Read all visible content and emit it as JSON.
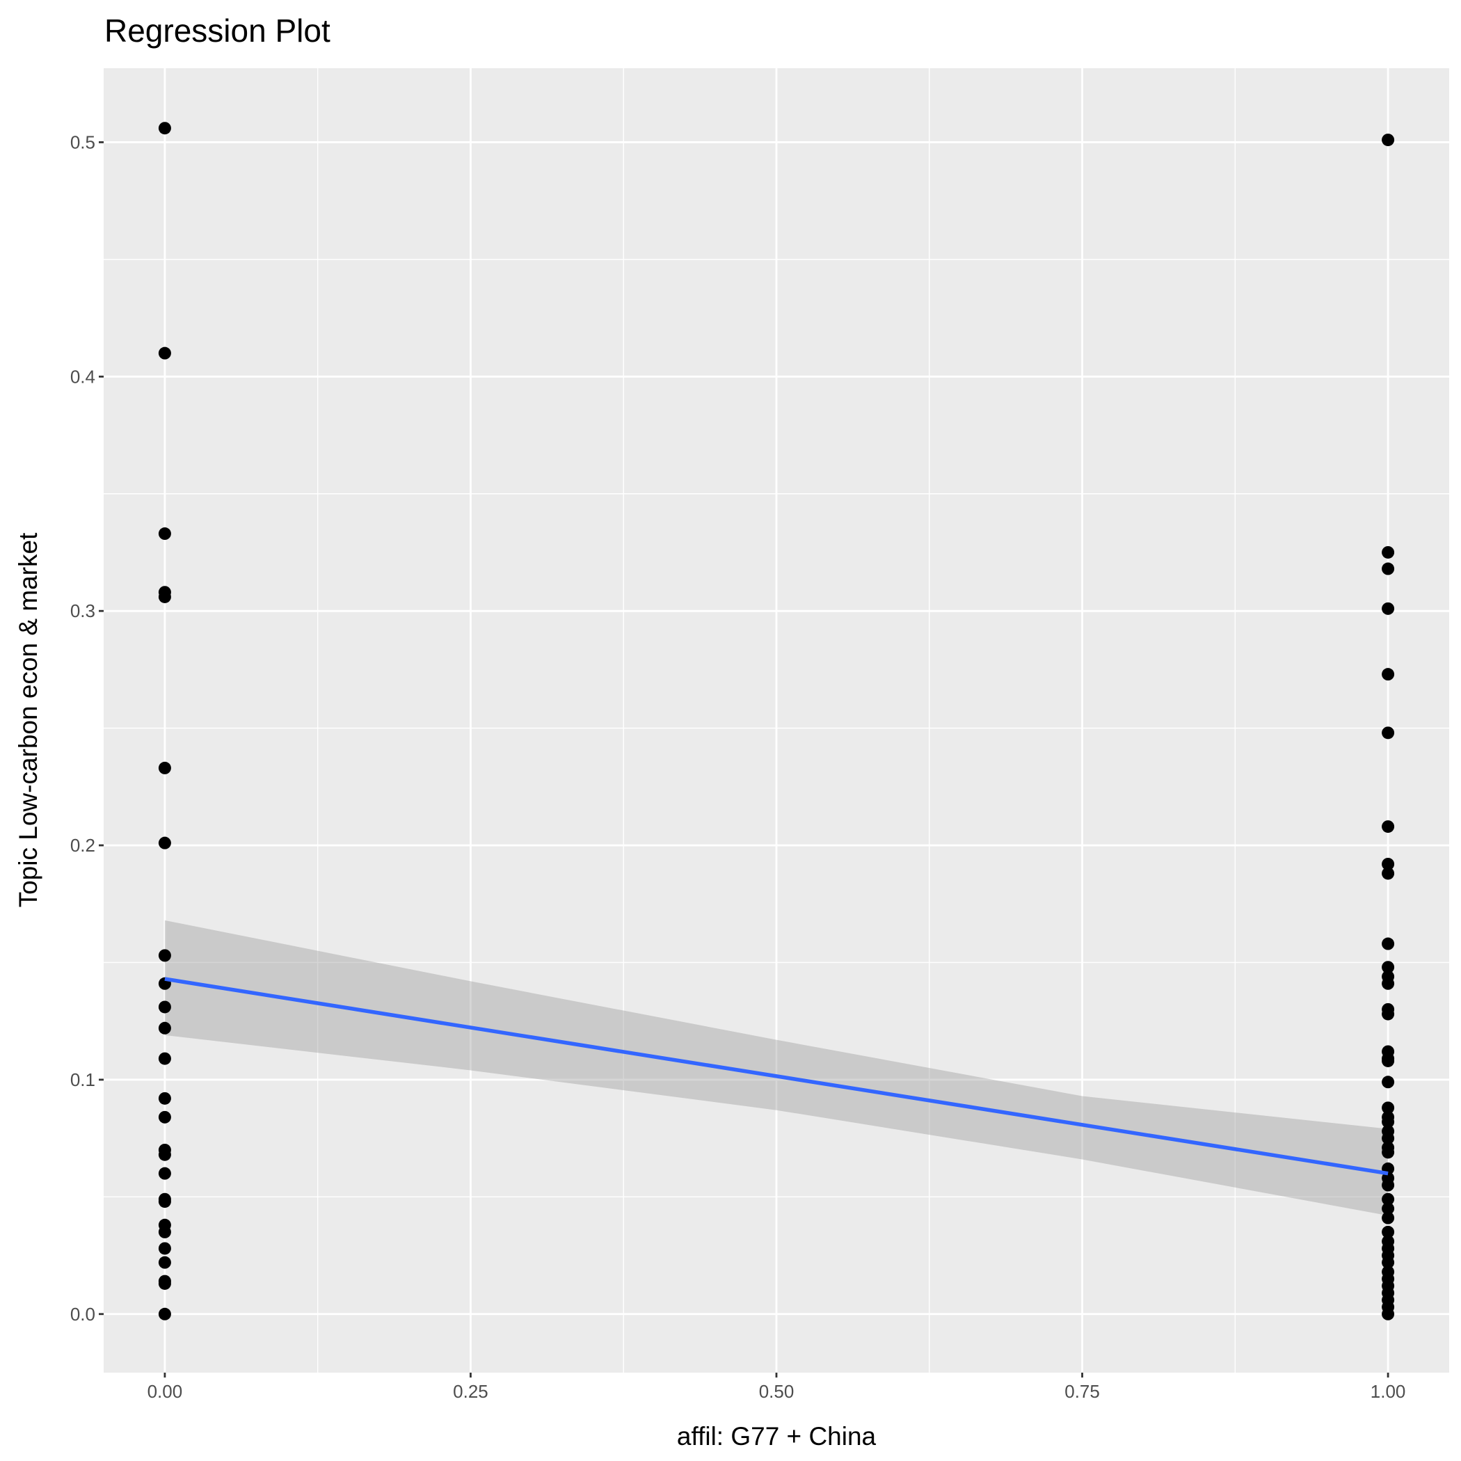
{
  "chart_data": {
    "type": "scatter",
    "title": "Regression Plot",
    "xlabel": "affil: G77 + China",
    "ylabel": "Topic Low-carbon econ & market",
    "xlim": [
      -0.05,
      1.05
    ],
    "ylim": [
      -0.025,
      0.5316
    ],
    "x_ticks": [
      0,
      0.25,
      0.5,
      0.75,
      1
    ],
    "x_tick_labels": [
      "0.00",
      "0.25",
      "0.50",
      "0.75",
      "1.00"
    ],
    "y_ticks": [
      0,
      0.1,
      0.2,
      0.3,
      0.4,
      0.5
    ],
    "y_tick_labels": [
      "0.0",
      "0.1",
      "0.2",
      "0.3",
      "0.4",
      "0.5"
    ],
    "grid": true,
    "series": [
      {
        "name": "x=0",
        "x": 0,
        "values": [
          0.506,
          0.41,
          0.333,
          0.308,
          0.306,
          0.233,
          0.201,
          0.153,
          0.141,
          0.131,
          0.122,
          0.109,
          0.092,
          0.084,
          0.07,
          0.068,
          0.06,
          0.049,
          0.048,
          0.038,
          0.035,
          0.028,
          0.022,
          0.014,
          0.013,
          0.0
        ]
      },
      {
        "name": "x=1",
        "x": 1,
        "values": [
          0.501,
          0.325,
          0.318,
          0.301,
          0.273,
          0.248,
          0.208,
          0.192,
          0.188,
          0.158,
          0.148,
          0.144,
          0.141,
          0.13,
          0.128,
          0.112,
          0.109,
          0.108,
          0.099,
          0.088,
          0.084,
          0.082,
          0.078,
          0.075,
          0.071,
          0.069,
          0.062,
          0.058,
          0.055,
          0.049,
          0.045,
          0.041,
          0.035,
          0.031,
          0.028,
          0.025,
          0.022,
          0.018,
          0.015,
          0.012,
          0.009,
          0.006,
          0.003,
          0.0
        ]
      }
    ],
    "regression": {
      "intercept": 0.143,
      "slope": -0.083,
      "color": "#3366FF"
    },
    "confidence_band": {
      "x": [
        0,
        0.25,
        0.5,
        0.75,
        1
      ],
      "lower": [
        0.119,
        0.104,
        0.087,
        0.066,
        0.042
      ],
      "upper": [
        0.168,
        0.142,
        0.117,
        0.093,
        0.079
      ]
    }
  }
}
